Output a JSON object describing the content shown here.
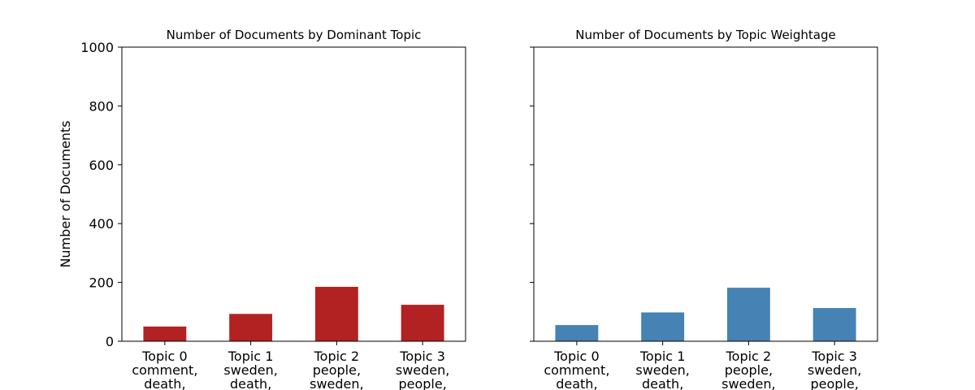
{
  "chart_data": [
    {
      "type": "bar",
      "title": "Number of Documents by Dominant Topic",
      "xlabel": "",
      "ylabel": "Number of Documents",
      "ylim": [
        0,
        1000
      ],
      "yticks": [
        "0",
        "200",
        "400",
        "600",
        "800",
        "1000"
      ],
      "categories": [
        [
          "Topic 0",
          "comment,",
          "death,"
        ],
        [
          "Topic 1",
          "sweden,",
          "death,"
        ],
        [
          "Topic 2",
          "people,",
          "sweden,"
        ],
        [
          "Topic 3",
          "sweden,",
          "people,"
        ]
      ],
      "values": [
        50,
        93,
        185,
        124
      ],
      "color": "#b22222"
    },
    {
      "type": "bar",
      "title": "Number of Documents by Topic Weightage",
      "xlabel": "",
      "ylabel": "",
      "ylim": [
        0,
        1000
      ],
      "yticks": [],
      "categories": [
        [
          "Topic 0",
          "comment,",
          "death,"
        ],
        [
          "Topic 1",
          "sweden,",
          "death,"
        ],
        [
          "Topic 2",
          "people,",
          "sweden,"
        ],
        [
          "Topic 3",
          "sweden,",
          "people,"
        ]
      ],
      "values": [
        55,
        98,
        182,
        113
      ],
      "color": "#4682b4"
    }
  ]
}
